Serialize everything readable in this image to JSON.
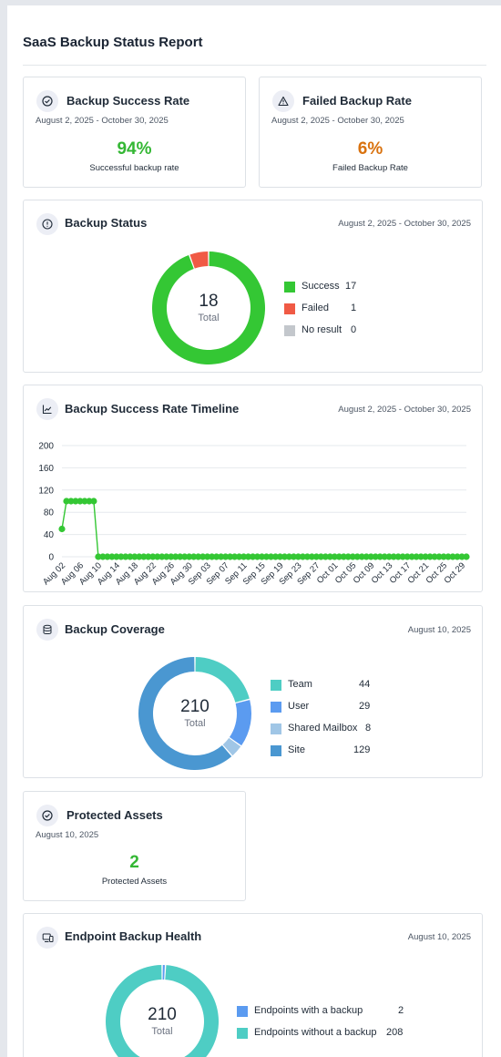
{
  "report": {
    "title": "SaaS Backup Status Report"
  },
  "colors": {
    "success": "#34c734",
    "failed": "#f05a45",
    "noresult": "#c3c7cc",
    "team": "#4ecdc4",
    "user": "#5b9bf0",
    "shared": "#a0c6e6",
    "site": "#4a97d1",
    "orange": "#d9720f"
  },
  "success_rate": {
    "title": "Backup Success Rate",
    "date": "August 2, 2025 - October 30, 2025",
    "value": "94%",
    "caption": "Successful backup rate",
    "icon": "check-circle-icon"
  },
  "failed_rate": {
    "title": "Failed Backup Rate",
    "date": "August 2, 2025 - October 30, 2025",
    "value": "6%",
    "caption": "Failed Backup Rate",
    "icon": "warning-triangle-icon"
  },
  "backup_status": {
    "title": "Backup Status",
    "date": "August 2, 2025 - October 30, 2025",
    "icon": "info-circle-icon",
    "total": "18",
    "total_label": "Total",
    "legend": [
      {
        "label": "Success",
        "value": "17",
        "color": "#34c734"
      },
      {
        "label": "Failed",
        "value": "1",
        "color": "#f05a45"
      },
      {
        "label": "No result",
        "value": "0",
        "color": "#c3c7cc"
      }
    ]
  },
  "timeline": {
    "title": "Backup Success Rate Timeline",
    "date": "August 2, 2025 - October 30, 2025",
    "icon": "trend-chart-icon"
  },
  "chart_data": {
    "type": "line",
    "title": "",
    "xlabel": "",
    "ylabel": "",
    "ylim": [
      0,
      200
    ],
    "yticks": [
      "0",
      "40",
      "80",
      "120",
      "160",
      "200"
    ],
    "xtick_labels": [
      "Aug 02",
      "Aug 06",
      "Aug 10",
      "Aug 14",
      "Aug 18",
      "Aug 22",
      "Aug 26",
      "Aug 30",
      "Sep 03",
      "Sep 07",
      "Sep 11",
      "Sep 15",
      "Sep 19",
      "Sep 23",
      "Sep 27",
      "Oct 01",
      "Oct 05",
      "Oct 09",
      "Oct 13",
      "Oct 17",
      "Oct 21",
      "Oct 25",
      "Oct 29"
    ],
    "start_date": "Aug 02",
    "grid": true,
    "series": [
      {
        "values": [
          50,
          100,
          100,
          100,
          100,
          100,
          100,
          100,
          0,
          0,
          0,
          0,
          0,
          0,
          0,
          0,
          0,
          0,
          0,
          0,
          0,
          0,
          0,
          0,
          0,
          0,
          0,
          0,
          0,
          0,
          0,
          0,
          0,
          0,
          0,
          0,
          0,
          0,
          0,
          0,
          0,
          0,
          0,
          0,
          0,
          0,
          0,
          0,
          0,
          0,
          0,
          0,
          0,
          0,
          0,
          0,
          0,
          0,
          0,
          0,
          0,
          0,
          0,
          0,
          0,
          0,
          0,
          0,
          0,
          0,
          0,
          0,
          0,
          0,
          0,
          0,
          0,
          0,
          0,
          0,
          0,
          0,
          0,
          0,
          0,
          0,
          0,
          0,
          0,
          0
        ]
      }
    ]
  },
  "coverage": {
    "title": "Backup Coverage",
    "date": "August 10, 2025",
    "icon": "database-icon",
    "total": "210",
    "total_label": "Total",
    "legend": [
      {
        "label": "Team",
        "value": "44",
        "color": "#4ecdc4"
      },
      {
        "label": "User",
        "value": "29",
        "color": "#5b9bf0"
      },
      {
        "label": "Shared Mailbox",
        "value": "8",
        "color": "#a0c6e6"
      },
      {
        "label": "Site",
        "value": "129",
        "color": "#4a97d1"
      }
    ]
  },
  "protected": {
    "title": "Protected Assets",
    "date": "August 10, 2025",
    "value": "2",
    "caption": "Protected Assets",
    "icon": "check-circle-icon"
  },
  "endpoint": {
    "title": "Endpoint Backup Health",
    "date": "August 10, 2025",
    "icon": "devices-icon",
    "total": "210",
    "total_label": "Total",
    "legend": [
      {
        "label": "Endpoints with a backup",
        "value": "2",
        "color": "#5b9bf0"
      },
      {
        "label": "Endpoints without a backup",
        "value": "208",
        "color": "#4ecdc4"
      }
    ]
  }
}
